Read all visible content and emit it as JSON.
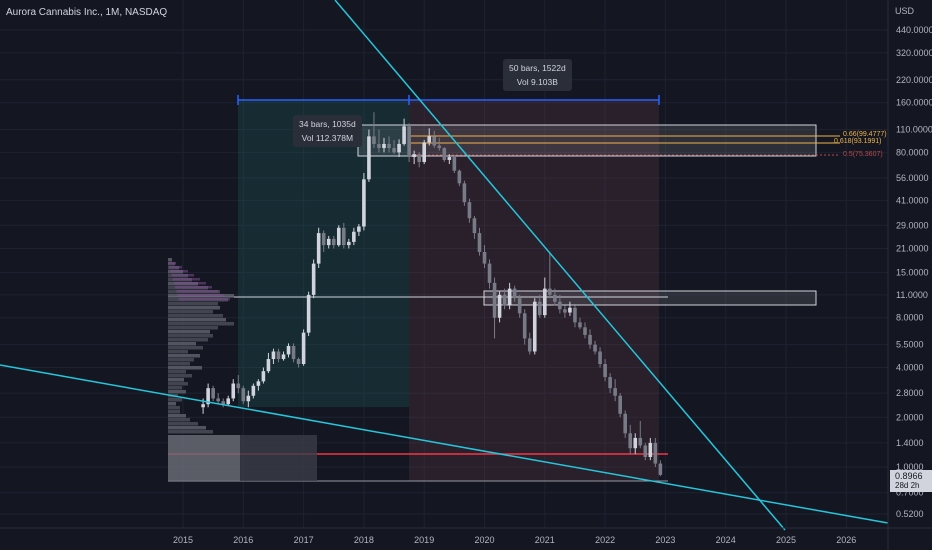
{
  "header": {
    "title": "Aurora Cannabis Inc., 1M, NASDAQ",
    "currency": "USD"
  },
  "tooltips": {
    "long": {
      "line1": "50 bars, 1522d",
      "line2": "Vol 9.103B"
    },
    "short": {
      "line1": "34 bars, 1035d",
      "line2": "Vol 112.378M"
    }
  },
  "fib_labels": {
    "f066": "0.66(99.4777)",
    "f0618": "0.618(93.1991)",
    "f05": "0.5(75.3607)"
  },
  "last_price": {
    "value": "0.8966",
    "countdown": "28d 2h"
  },
  "colors": {
    "background": "#141722",
    "up": "#d1d4dc",
    "down": "#787b86",
    "trendline": "#26c6da",
    "support": "#f23645",
    "fib": "#f0b34a",
    "measure": "#2962ff"
  },
  "chart_data": {
    "type": "candlestick",
    "title": "Aurora Cannabis Inc., 1M, NASDAQ",
    "y_scale": "log",
    "y_ticks": [
      "440.0000",
      "320.0000",
      "220.0000",
      "160.0000",
      "110.0000",
      "80.0000",
      "56.0000",
      "41.0000",
      "29.0000",
      "21.0000",
      "15.0000",
      "11.0000",
      "8.0000",
      "5.5000",
      "4.0000",
      "2.8000",
      "2.0000",
      "1.4000",
      "1.0000",
      "0.7000",
      "0.5200"
    ],
    "y_tick_values": [
      440,
      320,
      220,
      160,
      110,
      80,
      56,
      41,
      29,
      21,
      15,
      11,
      8,
      5.5,
      4,
      2.8,
      2,
      1.4,
      1,
      0.7,
      0.52
    ],
    "x_ticks": [
      "2015",
      "2016",
      "2017",
      "2018",
      "2019",
      "2020",
      "2021",
      "2022",
      "2023",
      "2024",
      "2025",
      "2026"
    ],
    "last_close": 0.8966,
    "series": [
      {
        "date": "2015-05",
        "o": 2.3,
        "h": 2.6,
        "l": 2.1,
        "c": 2.4
      },
      {
        "date": "2015-06",
        "o": 2.4,
        "h": 3.2,
        "l": 2.3,
        "c": 3.0
      },
      {
        "date": "2015-07",
        "o": 3.0,
        "h": 3.1,
        "l": 2.5,
        "c": 2.6
      },
      {
        "date": "2015-08",
        "o": 2.6,
        "h": 2.8,
        "l": 2.4,
        "c": 2.5
      },
      {
        "date": "2015-09",
        "o": 2.5,
        "h": 2.6,
        "l": 2.3,
        "c": 2.4
      },
      {
        "date": "2015-10",
        "o": 2.4,
        "h": 2.7,
        "l": 2.35,
        "c": 2.6
      },
      {
        "date": "2015-11",
        "o": 2.6,
        "h": 3.4,
        "l": 2.5,
        "c": 3.2
      },
      {
        "date": "2015-12",
        "o": 3.2,
        "h": 3.6,
        "l": 2.8,
        "c": 3.0
      },
      {
        "date": "2016-01",
        "o": 3.0,
        "h": 3.1,
        "l": 2.4,
        "c": 2.5
      },
      {
        "date": "2016-02",
        "o": 2.5,
        "h": 2.9,
        "l": 2.3,
        "c": 2.7
      },
      {
        "date": "2016-03",
        "o": 2.7,
        "h": 3.2,
        "l": 2.6,
        "c": 3.1
      },
      {
        "date": "2016-04",
        "o": 3.1,
        "h": 3.4,
        "l": 2.9,
        "c": 3.3
      },
      {
        "date": "2016-05",
        "o": 3.3,
        "h": 4.0,
        "l": 3.2,
        "c": 3.8
      },
      {
        "date": "2016-06",
        "o": 3.8,
        "h": 4.9,
        "l": 3.7,
        "c": 4.5
      },
      {
        "date": "2016-07",
        "o": 4.5,
        "h": 5.2,
        "l": 4.2,
        "c": 5.0
      },
      {
        "date": "2016-08",
        "o": 5.0,
        "h": 5.2,
        "l": 4.3,
        "c": 4.5
      },
      {
        "date": "2016-09",
        "o": 4.5,
        "h": 5.0,
        "l": 4.4,
        "c": 4.8
      },
      {
        "date": "2016-10",
        "o": 4.8,
        "h": 5.6,
        "l": 4.6,
        "c": 5.4
      },
      {
        "date": "2016-11",
        "o": 5.4,
        "h": 5.6,
        "l": 4.3,
        "c": 4.5
      },
      {
        "date": "2016-12",
        "o": 4.5,
        "h": 4.6,
        "l": 4.0,
        "c": 4.2
      },
      {
        "date": "2017-01",
        "o": 4.2,
        "h": 6.8,
        "l": 4.1,
        "c": 6.5
      },
      {
        "date": "2017-02",
        "o": 6.5,
        "h": 11.5,
        "l": 6.2,
        "c": 11.0
      },
      {
        "date": "2017-03",
        "o": 11.0,
        "h": 18.0,
        "l": 10.5,
        "c": 17.0
      },
      {
        "date": "2017-04",
        "o": 17.0,
        "h": 28.0,
        "l": 16.0,
        "c": 26.0
      },
      {
        "date": "2017-05",
        "o": 26.0,
        "h": 27.0,
        "l": 20.0,
        "c": 22.0
      },
      {
        "date": "2017-06",
        "o": 22.0,
        "h": 25.0,
        "l": 21.0,
        "c": 24.0
      },
      {
        "date": "2017-07",
        "o": 24.0,
        "h": 25.0,
        "l": 21.0,
        "c": 22.0
      },
      {
        "date": "2017-08",
        "o": 22.0,
        "h": 29.0,
        "l": 21.5,
        "c": 28.0
      },
      {
        "date": "2017-09",
        "o": 28.0,
        "h": 30.0,
        "l": 21.0,
        "c": 22.0
      },
      {
        "date": "2017-10",
        "o": 22.0,
        "h": 24.0,
        "l": 21.0,
        "c": 23.0
      },
      {
        "date": "2017-11",
        "o": 23.0,
        "h": 28.0,
        "l": 22.0,
        "c": 26.5
      },
      {
        "date": "2017-12",
        "o": 26.5,
        "h": 29.5,
        "l": 25.0,
        "c": 28.5
      },
      {
        "date": "2018-01",
        "o": 28.5,
        "h": 60.0,
        "l": 27.0,
        "c": 55.0
      },
      {
        "date": "2018-02",
        "o": 55.0,
        "h": 110.0,
        "l": 53.0,
        "c": 100.0
      },
      {
        "date": "2018-03",
        "o": 100.0,
        "h": 140.0,
        "l": 85.0,
        "c": 90.0
      },
      {
        "date": "2018-04",
        "o": 90.0,
        "h": 110.0,
        "l": 80.0,
        "c": 85.0
      },
      {
        "date": "2018-05",
        "o": 85.0,
        "h": 98.0,
        "l": 80.0,
        "c": 90.0
      },
      {
        "date": "2018-06",
        "o": 90.0,
        "h": 100.0,
        "l": 80.0,
        "c": 85.0
      },
      {
        "date": "2018-07",
        "o": 85.0,
        "h": 95.0,
        "l": 78.0,
        "c": 80.0
      },
      {
        "date": "2018-08",
        "o": 80.0,
        "h": 96.0,
        "l": 75.0,
        "c": 90.0
      },
      {
        "date": "2018-09",
        "o": 90.0,
        "h": 128.0,
        "l": 88.0,
        "c": 115.0
      },
      {
        "date": "2018-10",
        "o": 115.0,
        "h": 120.0,
        "l": 70.0,
        "c": 75.0
      },
      {
        "date": "2018-11",
        "o": 75.0,
        "h": 82.0,
        "l": 68.0,
        "c": 78.0
      },
      {
        "date": "2018-12",
        "o": 78.0,
        "h": 80.0,
        "l": 65.0,
        "c": 70.0
      },
      {
        "date": "2019-01",
        "o": 70.0,
        "h": 95.0,
        "l": 68.0,
        "c": 92.0
      },
      {
        "date": "2019-02",
        "o": 92.0,
        "h": 112.0,
        "l": 88.0,
        "c": 100.0
      },
      {
        "date": "2019-03",
        "o": 100.0,
        "h": 108.0,
        "l": 85.0,
        "c": 88.0
      },
      {
        "date": "2019-04",
        "o": 88.0,
        "h": 98.0,
        "l": 82.0,
        "c": 85.0
      },
      {
        "date": "2019-05",
        "o": 85.0,
        "h": 86.0,
        "l": 70.0,
        "c": 72.0
      },
      {
        "date": "2019-06",
        "o": 72.0,
        "h": 78.0,
        "l": 68.0,
        "c": 75.0
      },
      {
        "date": "2019-07",
        "o": 75.0,
        "h": 77.0,
        "l": 60.0,
        "c": 62.0
      },
      {
        "date": "2019-08",
        "o": 62.0,
        "h": 63.0,
        "l": 50.0,
        "c": 52.0
      },
      {
        "date": "2019-09",
        "o": 52.0,
        "h": 54.0,
        "l": 38.0,
        "c": 40.0
      },
      {
        "date": "2019-10",
        "o": 40.0,
        "h": 42.0,
        "l": 30.0,
        "c": 32.0
      },
      {
        "date": "2019-11",
        "o": 32.0,
        "h": 33.0,
        "l": 24.0,
        "c": 26.0
      },
      {
        "date": "2019-12",
        "o": 26.0,
        "h": 28.0,
        "l": 19.0,
        "c": 20.0
      },
      {
        "date": "2020-01",
        "o": 20.0,
        "h": 22.0,
        "l": 16.0,
        "c": 17.0
      },
      {
        "date": "2020-02",
        "o": 17.0,
        "h": 18.0,
        "l": 12.0,
        "c": 13.0
      },
      {
        "date": "2020-03",
        "o": 13.0,
        "h": 14.0,
        "l": 6.0,
        "c": 8.0
      },
      {
        "date": "2020-04",
        "o": 8.0,
        "h": 11.5,
        "l": 7.5,
        "c": 11.0
      },
      {
        "date": "2020-05",
        "o": 11.0,
        "h": 12.0,
        "l": 9.0,
        "c": 9.5
      },
      {
        "date": "2020-06",
        "o": 9.5,
        "h": 13.0,
        "l": 9.0,
        "c": 12.0
      },
      {
        "date": "2020-07",
        "o": 12.0,
        "h": 12.5,
        "l": 10.0,
        "c": 10.5
      },
      {
        "date": "2020-08",
        "o": 10.5,
        "h": 11.0,
        "l": 8.0,
        "c": 8.5
      },
      {
        "date": "2020-09",
        "o": 8.5,
        "h": 9.0,
        "l": 5.5,
        "c": 6.0
      },
      {
        "date": "2020-10",
        "o": 6.0,
        "h": 6.5,
        "l": 4.8,
        "c": 5.0
      },
      {
        "date": "2020-11",
        "o": 5.0,
        "h": 10.5,
        "l": 4.8,
        "c": 10.0
      },
      {
        "date": "2020-12",
        "o": 10.0,
        "h": 11.0,
        "l": 8.0,
        "c": 8.3
      },
      {
        "date": "2021-01",
        "o": 8.3,
        "h": 14.0,
        "l": 8.0,
        "c": 12.0
      },
      {
        "date": "2021-02",
        "o": 12.0,
        "h": 20.0,
        "l": 10.5,
        "c": 11.0
      },
      {
        "date": "2021-03",
        "o": 11.0,
        "h": 12.0,
        "l": 9.5,
        "c": 10.0
      },
      {
        "date": "2021-04",
        "o": 10.0,
        "h": 11.0,
        "l": 8.5,
        "c": 9.0
      },
      {
        "date": "2021-05",
        "o": 9.0,
        "h": 9.5,
        "l": 8.0,
        "c": 8.6
      },
      {
        "date": "2021-06",
        "o": 8.6,
        "h": 10.0,
        "l": 8.2,
        "c": 9.2
      },
      {
        "date": "2021-07",
        "o": 9.2,
        "h": 9.5,
        "l": 7.0,
        "c": 7.5
      },
      {
        "date": "2021-08",
        "o": 7.5,
        "h": 8.0,
        "l": 6.8,
        "c": 7.0
      },
      {
        "date": "2021-09",
        "o": 7.0,
        "h": 7.5,
        "l": 6.0,
        "c": 6.3
      },
      {
        "date": "2021-10",
        "o": 6.3,
        "h": 6.8,
        "l": 5.2,
        "c": 5.5
      },
      {
        "date": "2021-11",
        "o": 5.5,
        "h": 5.8,
        "l": 4.8,
        "c": 5.0
      },
      {
        "date": "2021-12",
        "o": 5.0,
        "h": 5.3,
        "l": 4.0,
        "c": 4.2
      },
      {
        "date": "2022-01",
        "o": 4.2,
        "h": 4.5,
        "l": 3.3,
        "c": 3.5
      },
      {
        "date": "2022-02",
        "o": 3.5,
        "h": 3.7,
        "l": 2.8,
        "c": 3.0
      },
      {
        "date": "2022-03",
        "o": 3.0,
        "h": 3.4,
        "l": 2.5,
        "c": 2.7
      },
      {
        "date": "2022-04",
        "o": 2.7,
        "h": 2.8,
        "l": 2.0,
        "c": 2.1
      },
      {
        "date": "2022-05",
        "o": 2.1,
        "h": 2.2,
        "l": 1.5,
        "c": 1.6
      },
      {
        "date": "2022-06",
        "o": 1.6,
        "h": 1.8,
        "l": 1.2,
        "c": 1.3
      },
      {
        "date": "2022-07",
        "o": 1.3,
        "h": 1.6,
        "l": 1.2,
        "c": 1.5
      },
      {
        "date": "2022-08",
        "o": 1.5,
        "h": 1.9,
        "l": 1.3,
        "c": 1.35
      },
      {
        "date": "2022-09",
        "o": 1.35,
        "h": 1.4,
        "l": 1.1,
        "c": 1.15
      },
      {
        "date": "2022-10",
        "o": 1.15,
        "h": 1.5,
        "l": 1.1,
        "c": 1.4
      },
      {
        "date": "2022-11",
        "o": 1.4,
        "h": 1.5,
        "l": 1.0,
        "c": 1.05
      },
      {
        "date": "2022-12",
        "o": 1.05,
        "h": 1.1,
        "l": 0.88,
        "c": 0.8966
      }
    ]
  }
}
